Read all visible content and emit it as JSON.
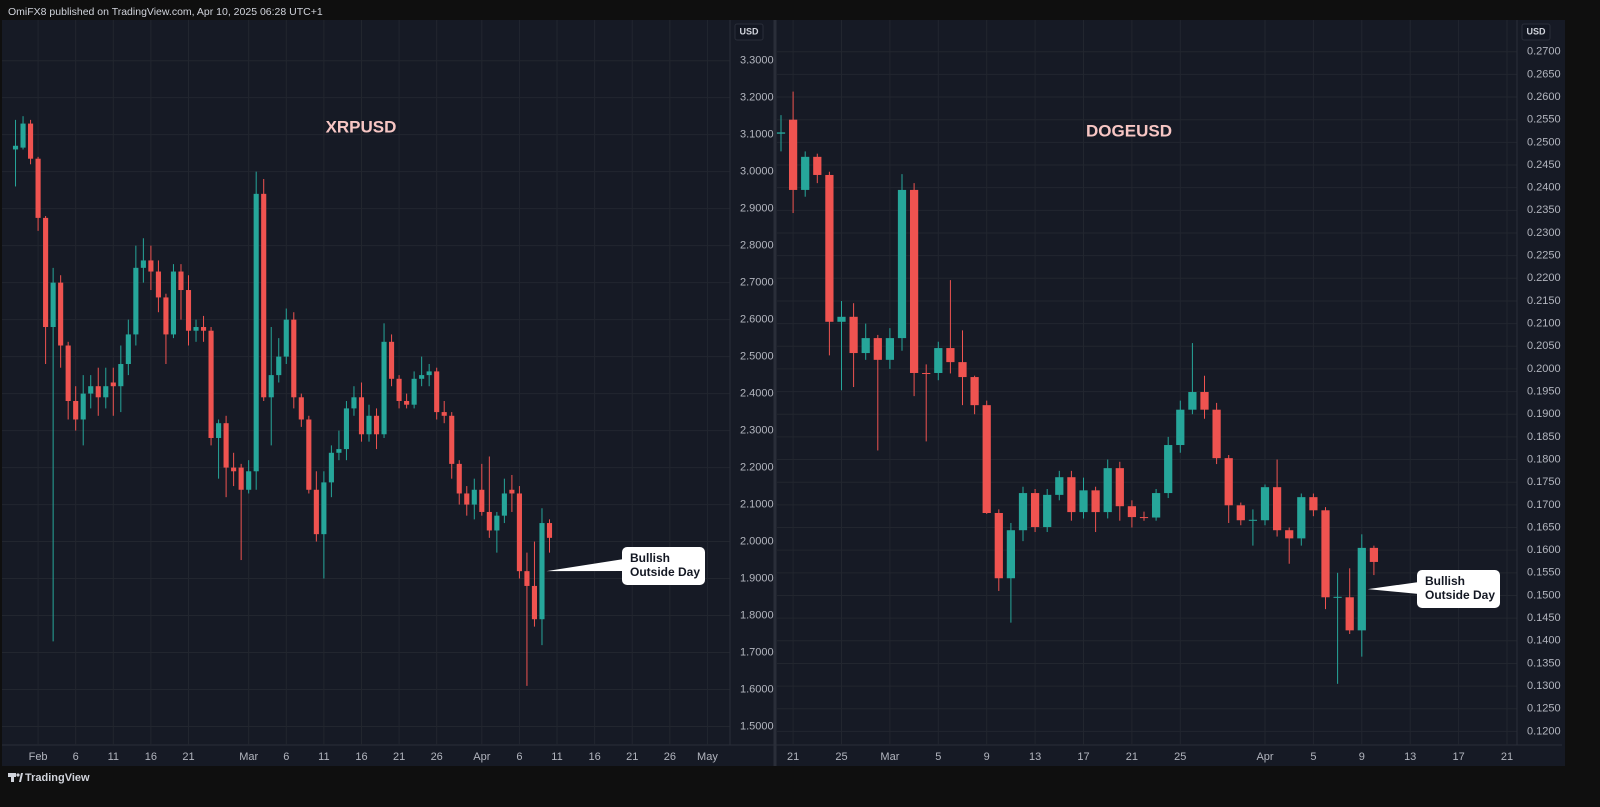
{
  "header": {
    "text": "OmiFX8 published on TradingView.com, Apr 10, 2025 06:28 UTC+1"
  },
  "footer": {
    "brand": "TradingView"
  },
  "chart_data": [
    {
      "type": "candlestick",
      "title": "XRPUSD",
      "currency": "USD",
      "up_color": "#26a69a",
      "down_color": "#ef5350",
      "grid": true,
      "x": [
        "01-29",
        "01-30",
        "01-31",
        "02-01",
        "02-02",
        "02-03",
        "02-04",
        "02-05",
        "02-06",
        "02-07",
        "02-08",
        "02-09",
        "02-10",
        "02-11",
        "02-12",
        "02-13",
        "02-14",
        "02-15",
        "02-16",
        "02-17",
        "02-18",
        "02-19",
        "02-20",
        "02-21",
        "02-22",
        "02-23",
        "02-24",
        "02-25",
        "02-26",
        "02-27",
        "02-28",
        "03-01",
        "03-02",
        "03-03",
        "03-04",
        "03-05",
        "03-06",
        "03-07",
        "03-08",
        "03-09",
        "03-10",
        "03-11",
        "03-12",
        "03-13",
        "03-14",
        "03-15",
        "03-16",
        "03-17",
        "03-18",
        "03-19",
        "03-20",
        "03-21",
        "03-22",
        "03-23",
        "03-24",
        "03-25",
        "03-26",
        "03-27",
        "03-28",
        "03-29",
        "03-30",
        "03-31",
        "04-01",
        "04-02",
        "04-03",
        "04-04",
        "04-05",
        "04-06",
        "04-07",
        "04-08",
        "04-09",
        "04-10"
      ],
      "open": [
        3.06,
        3.065,
        3.13,
        3.035,
        2.875,
        2.58,
        2.7,
        2.53,
        2.38,
        2.33,
        2.4,
        2.42,
        2.39,
        2.43,
        2.42,
        2.48,
        2.56,
        2.74,
        2.76,
        2.73,
        2.66,
        2.56,
        2.73,
        2.68,
        2.57,
        2.58,
        2.57,
        2.28,
        2.32,
        2.2,
        2.2,
        2.14,
        2.19,
        2.94,
        2.39,
        2.45,
        2.5,
        2.6,
        2.39,
        2.33,
        2.14,
        2.02,
        2.16,
        2.24,
        2.25,
        2.36,
        2.39,
        2.29,
        2.34,
        2.29,
        2.54,
        2.44,
        2.38,
        2.37,
        2.44,
        2.45,
        2.46,
        2.35,
        2.34,
        2.21,
        2.13,
        2.1,
        2.14,
        2.08,
        2.03,
        2.07,
        2.14,
        2.13,
        1.92,
        1.88,
        1.79,
        2.05
      ],
      "high": [
        3.14,
        3.15,
        3.14,
        3.04,
        2.88,
        2.74,
        2.72,
        2.54,
        2.42,
        2.45,
        2.45,
        2.47,
        2.47,
        2.47,
        2.53,
        2.6,
        2.8,
        2.82,
        2.8,
        2.76,
        2.67,
        2.75,
        2.75,
        2.72,
        2.6,
        2.61,
        2.58,
        2.33,
        2.34,
        2.24,
        2.21,
        2.22,
        3.0,
        2.98,
        2.58,
        2.55,
        2.63,
        2.62,
        2.4,
        2.34,
        2.19,
        2.19,
        2.26,
        2.3,
        2.38,
        2.42,
        2.43,
        2.37,
        2.36,
        2.59,
        2.56,
        2.45,
        2.4,
        2.46,
        2.5,
        2.48,
        2.47,
        2.38,
        2.35,
        2.22,
        2.15,
        2.17,
        2.21,
        2.23,
        2.08,
        2.17,
        2.18,
        2.15,
        1.97,
        2.0,
        2.09,
        2.06
      ],
      "low": [
        2.96,
        3.06,
        3.02,
        2.84,
        2.48,
        1.73,
        2.47,
        2.33,
        2.3,
        2.26,
        2.36,
        2.34,
        2.36,
        2.34,
        2.35,
        2.45,
        2.53,
        2.7,
        2.68,
        2.62,
        2.48,
        2.55,
        2.6,
        2.53,
        2.54,
        2.54,
        2.26,
        2.17,
        2.12,
        2.15,
        1.95,
        2.13,
        2.14,
        2.38,
        2.26,
        2.43,
        2.48,
        2.36,
        2.31,
        2.13,
        2.0,
        1.9,
        2.12,
        2.22,
        2.22,
        2.34,
        2.27,
        2.27,
        2.25,
        2.28,
        2.42,
        2.36,
        2.36,
        2.36,
        2.42,
        2.42,
        2.33,
        2.32,
        2.17,
        2.1,
        2.07,
        2.06,
        2.07,
        2.01,
        1.97,
        2.05,
        2.08,
        1.9,
        1.61,
        1.77,
        1.72,
        1.97
      ],
      "close": [
        3.07,
        3.13,
        3.035,
        2.875,
        2.58,
        2.7,
        2.53,
        2.38,
        2.33,
        2.4,
        2.42,
        2.39,
        2.42,
        2.42,
        2.48,
        2.56,
        2.74,
        2.76,
        2.73,
        2.66,
        2.56,
        2.73,
        2.68,
        2.57,
        2.58,
        2.57,
        2.28,
        2.32,
        2.2,
        2.19,
        2.14,
        2.19,
        2.94,
        2.39,
        2.45,
        2.5,
        2.6,
        2.39,
        2.33,
        2.14,
        2.02,
        2.16,
        2.24,
        2.25,
        2.36,
        2.39,
        2.29,
        2.34,
        2.29,
        2.54,
        2.44,
        2.38,
        2.37,
        2.44,
        2.45,
        2.46,
        2.35,
        2.34,
        2.21,
        2.13,
        2.1,
        2.14,
        2.08,
        2.03,
        2.07,
        2.13,
        2.13,
        1.92,
        1.88,
        1.79,
        2.05,
        2.01
      ],
      "xlim": [
        "01-28",
        "05-04"
      ],
      "xticks": [
        {
          "value": "02-01",
          "label": "Feb"
        },
        {
          "value": "02-06",
          "label": "6"
        },
        {
          "value": "02-11",
          "label": "11"
        },
        {
          "value": "02-16",
          "label": "16"
        },
        {
          "value": "02-21",
          "label": "21"
        },
        {
          "value": "03-01",
          "label": "Mar"
        },
        {
          "value": "03-06",
          "label": "6"
        },
        {
          "value": "03-11",
          "label": "11"
        },
        {
          "value": "03-16",
          "label": "16"
        },
        {
          "value": "03-21",
          "label": "21"
        },
        {
          "value": "03-26",
          "label": "26"
        },
        {
          "value": "04-01",
          "label": "Apr"
        },
        {
          "value": "04-06",
          "label": "6"
        },
        {
          "value": "04-11",
          "label": "11"
        },
        {
          "value": "04-16",
          "label": "16"
        },
        {
          "value": "04-21",
          "label": "21"
        },
        {
          "value": "04-26",
          "label": "26"
        },
        {
          "value": "05-01",
          "label": "May"
        }
      ],
      "ylim": [
        1.45,
        3.41
      ],
      "yticks": [
        {
          "value": 1.5,
          "label": "1.5000"
        },
        {
          "value": 1.6,
          "label": "1.6000"
        },
        {
          "value": 1.7,
          "label": "1.7000"
        },
        {
          "value": 1.8,
          "label": "1.8000"
        },
        {
          "value": 1.9,
          "label": "1.9000"
        },
        {
          "value": 2.0,
          "label": "2.0000"
        },
        {
          "value": 2.1,
          "label": "2.1000"
        },
        {
          "value": 2.2,
          "label": "2.2000"
        },
        {
          "value": 2.3,
          "label": "2.3000"
        },
        {
          "value": 2.4,
          "label": "2.4000"
        },
        {
          "value": 2.5,
          "label": "2.5000"
        },
        {
          "value": 2.6,
          "label": "2.6000"
        },
        {
          "value": 2.7,
          "label": "2.7000"
        },
        {
          "value": 2.8,
          "label": "2.8000"
        },
        {
          "value": 2.9,
          "label": "2.9000"
        },
        {
          "value": 3.0,
          "label": "3.0000"
        },
        {
          "value": 3.1,
          "label": "3.1000"
        },
        {
          "value": 3.2,
          "label": "3.2000"
        },
        {
          "value": 3.3,
          "label": "3.3000"
        }
      ],
      "annotation": [
        "Bullish",
        "Outside Day"
      ]
    },
    {
      "type": "candlestick",
      "title": "DOGEUSD",
      "currency": "USD",
      "up_color": "#26a69a",
      "down_color": "#ef5350",
      "grid": true,
      "x": [
        "02-20",
        "02-21",
        "02-22",
        "02-23",
        "02-24",
        "02-25",
        "02-26",
        "02-27",
        "02-28",
        "03-01",
        "03-02",
        "03-03",
        "03-04",
        "03-05",
        "03-06",
        "03-07",
        "03-08",
        "03-09",
        "03-10",
        "03-11",
        "03-12",
        "03-13",
        "03-14",
        "03-15",
        "03-16",
        "03-17",
        "03-18",
        "03-19",
        "03-20",
        "03-21",
        "03-22",
        "03-23",
        "03-24",
        "03-25",
        "03-26",
        "03-27",
        "03-28",
        "03-29",
        "03-30",
        "03-31",
        "04-01",
        "04-02",
        "04-03",
        "04-04",
        "04-05",
        "04-06",
        "04-07",
        "04-08",
        "04-09",
        "04-10"
      ],
      "open": [
        0.2519,
        0.255,
        0.2395,
        0.2468,
        0.2428,
        0.2104,
        0.2115,
        0.2035,
        0.2068,
        0.202,
        0.2068,
        0.2395,
        0.1991,
        0.1991,
        0.2046,
        0.2015,
        0.1982,
        0.192,
        0.1682,
        0.1538,
        0.1644,
        0.1726,
        0.1651,
        0.1722,
        0.1761,
        0.1684,
        0.1732,
        0.1684,
        0.1781,
        0.1697,
        0.1673,
        0.1672,
        0.1726,
        0.1832,
        0.191,
        0.1949,
        0.191,
        0.1803,
        0.1699,
        0.1666,
        0.1666,
        0.1739,
        0.1644,
        0.1626,
        0.1717,
        0.1688,
        0.1496,
        0.1496,
        0.1423,
        0.1605
      ],
      "high": [
        0.256,
        0.2612,
        0.248,
        0.2475,
        0.2435,
        0.215,
        0.2145,
        0.21,
        0.2075,
        0.209,
        0.243,
        0.241,
        0.201,
        0.206,
        0.2196,
        0.2085,
        0.1985,
        0.193,
        0.169,
        0.166,
        0.174,
        0.1735,
        0.1735,
        0.1775,
        0.1775,
        0.176,
        0.174,
        0.18,
        0.1795,
        0.171,
        0.1685,
        0.1735,
        0.185,
        0.193,
        0.2057,
        0.1985,
        0.1925,
        0.181,
        0.1705,
        0.169,
        0.1745,
        0.18,
        0.165,
        0.1725,
        0.1725,
        0.1695,
        0.155,
        0.156,
        0.1635,
        0.161
      ],
      "low": [
        0.248,
        0.2344,
        0.238,
        0.241,
        0.203,
        0.1953,
        0.196,
        0.202,
        0.182,
        0.2,
        0.204,
        0.194,
        0.184,
        0.1975,
        0.199,
        0.192,
        0.19,
        0.168,
        0.151,
        0.144,
        0.162,
        0.164,
        0.164,
        0.171,
        0.1665,
        0.167,
        0.164,
        0.167,
        0.1665,
        0.165,
        0.1665,
        0.1665,
        0.1715,
        0.1815,
        0.19,
        0.189,
        0.179,
        0.166,
        0.1655,
        0.161,
        0.1655,
        0.163,
        0.157,
        0.161,
        0.1675,
        0.147,
        0.1305,
        0.1415,
        0.1365,
        0.1545
      ],
      "close": [
        0.2522,
        0.2395,
        0.2468,
        0.2428,
        0.2104,
        0.2115,
        0.2035,
        0.2068,
        0.202,
        0.2068,
        0.2395,
        0.1991,
        0.199,
        0.2046,
        0.2015,
        0.1982,
        0.192,
        0.1682,
        0.1538,
        0.1644,
        0.1726,
        0.1651,
        0.1722,
        0.1761,
        0.1684,
        0.1732,
        0.1684,
        0.1781,
        0.1697,
        0.1673,
        0.1672,
        0.1726,
        0.1832,
        0.191,
        0.1949,
        0.191,
        0.1803,
        0.1699,
        0.1666,
        0.1667,
        0.1739,
        0.1644,
        0.1626,
        0.1717,
        0.1688,
        0.1496,
        0.1497,
        0.1423,
        0.1605,
        0.1574
      ],
      "xlim": [
        "02-20",
        "04-21"
      ],
      "xticks": [
        {
          "value": "02-21",
          "label": "21"
        },
        {
          "value": "02-25",
          "label": "25"
        },
        {
          "value": "03-01",
          "label": "Mar"
        },
        {
          "value": "03-05",
          "label": "5"
        },
        {
          "value": "03-09",
          "label": "9"
        },
        {
          "value": "03-13",
          "label": "13"
        },
        {
          "value": "03-17",
          "label": "17"
        },
        {
          "value": "03-21",
          "label": "21"
        },
        {
          "value": "03-25",
          "label": "25"
        },
        {
          "value": "04-01",
          "label": "Apr"
        },
        {
          "value": "04-05",
          "label": "5"
        },
        {
          "value": "04-09",
          "label": "9"
        },
        {
          "value": "04-13",
          "label": "13"
        },
        {
          "value": "04-17",
          "label": "17"
        },
        {
          "value": "04-21",
          "label": "21"
        }
      ],
      "ylim": [
        0.117,
        0.277
      ],
      "yticks": [
        {
          "value": 0.12,
          "label": "0.1200"
        },
        {
          "value": 0.125,
          "label": "0.1250"
        },
        {
          "value": 0.13,
          "label": "0.1300"
        },
        {
          "value": 0.135,
          "label": "0.1350"
        },
        {
          "value": 0.14,
          "label": "0.1400"
        },
        {
          "value": 0.145,
          "label": "0.1450"
        },
        {
          "value": 0.15,
          "label": "0.1500"
        },
        {
          "value": 0.155,
          "label": "0.1550"
        },
        {
          "value": 0.16,
          "label": "0.1600"
        },
        {
          "value": 0.165,
          "label": "0.1650"
        },
        {
          "value": 0.17,
          "label": "0.1700"
        },
        {
          "value": 0.175,
          "label": "0.1750"
        },
        {
          "value": 0.18,
          "label": "0.1800"
        },
        {
          "value": 0.185,
          "label": "0.1850"
        },
        {
          "value": 0.19,
          "label": "0.1900"
        },
        {
          "value": 0.195,
          "label": "0.1950"
        },
        {
          "value": 0.2,
          "label": "0.2000"
        },
        {
          "value": 0.205,
          "label": "0.2050"
        },
        {
          "value": 0.21,
          "label": "0.2100"
        },
        {
          "value": 0.215,
          "label": "0.2150"
        },
        {
          "value": 0.22,
          "label": "0.2200"
        },
        {
          "value": 0.225,
          "label": "0.2250"
        },
        {
          "value": 0.23,
          "label": "0.2300"
        },
        {
          "value": 0.235,
          "label": "0.2350"
        },
        {
          "value": 0.24,
          "label": "0.2400"
        },
        {
          "value": 0.245,
          "label": "0.2450"
        },
        {
          "value": 0.25,
          "label": "0.2500"
        },
        {
          "value": 0.255,
          "label": "0.2550"
        },
        {
          "value": 0.26,
          "label": "0.2600"
        },
        {
          "value": 0.265,
          "label": "0.2650"
        },
        {
          "value": 0.27,
          "label": "0.2700"
        }
      ],
      "annotation": [
        "Bullish",
        "Outside Day"
      ]
    }
  ]
}
